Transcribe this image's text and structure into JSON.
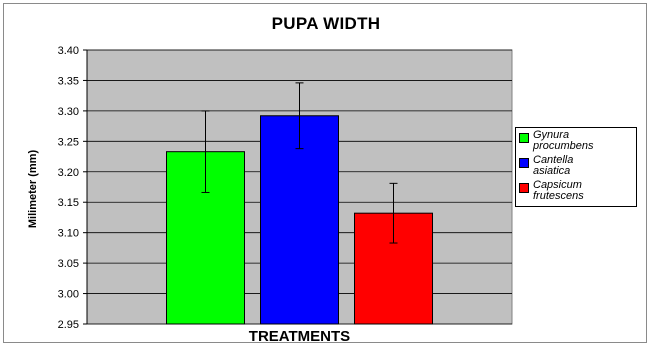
{
  "chart_data": {
    "type": "bar",
    "title": "PUPA WIDTH",
    "xlabel": "TREATMENTS",
    "ylabel": "Milimeter (mm)",
    "ylim": [
      2.95,
      3.4
    ],
    "yticks": [
      "2.95",
      "3.00",
      "3.05",
      "3.10",
      "3.15",
      "3.20",
      "3.25",
      "3.30",
      "3.35",
      "3.40"
    ],
    "grid": true,
    "legend_placement": "right",
    "series": [
      {
        "name": "Gynura procumbens",
        "name_lines": [
          "Gynura",
          "procumbens"
        ],
        "value": 3.233,
        "error": 0.067,
        "color": "#00ff00"
      },
      {
        "name": "Cantella asiatica",
        "name_lines": [
          "Cantella",
          "asiatica"
        ],
        "value": 3.292,
        "error": 0.054,
        "color": "#0000ff"
      },
      {
        "name": "Capsicum frutescens",
        "name_lines": [
          "Capsicum",
          "frutescens"
        ],
        "value": 3.132,
        "error": 0.049,
        "color": "#ff0000"
      }
    ],
    "plot_background": "#c0c0c0"
  }
}
